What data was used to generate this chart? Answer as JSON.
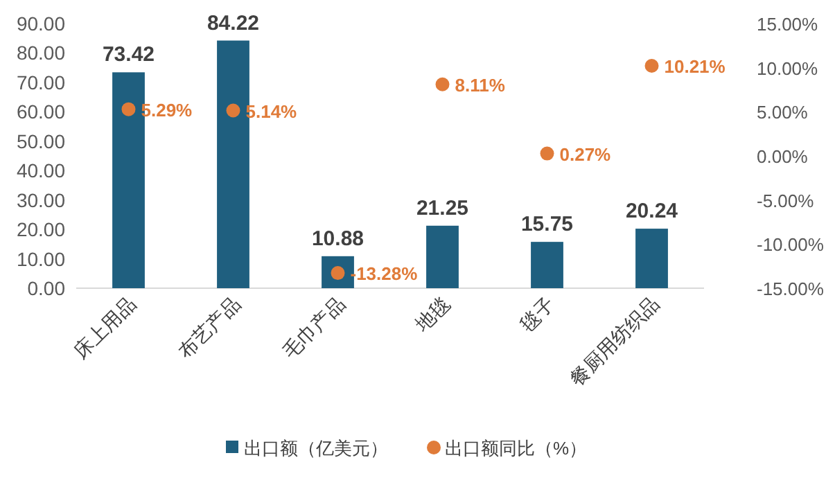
{
  "chart_data": {
    "type": "bar",
    "categories": [
      "床上用品",
      "布艺产品",
      "毛巾产品",
      "地毯",
      "毯子",
      "餐厨用纺织品"
    ],
    "series": [
      {
        "name": "出口额（亿美元）",
        "color": "#1f5f7f",
        "values": [
          73.42,
          84.22,
          10.88,
          21.25,
          15.75,
          20.24
        ],
        "data_labels": true
      },
      {
        "name": "出口额同比（%）",
        "type": "scatter",
        "axis": "y2",
        "color": "#e07b39",
        "values": [
          5.29,
          5.14,
          -13.28,
          8.11,
          0.27,
          10.21
        ],
        "value_labels": [
          "5.29%",
          "5.14%",
          "-13.28%",
          "8.11%",
          "0.27%",
          "10.21%"
        ]
      }
    ],
    "ylim": [
      0,
      90
    ],
    "yticks": [
      {
        "value": 0,
        "label": "0.00"
      },
      {
        "value": 10,
        "label": "10.00"
      },
      {
        "value": 20,
        "label": "20.00"
      },
      {
        "value": 30,
        "label": "30.00"
      },
      {
        "value": 40,
        "label": "40.00"
      },
      {
        "value": 50,
        "label": "50.00"
      },
      {
        "value": 60,
        "label": "60.00"
      },
      {
        "value": 70,
        "label": "70.00"
      },
      {
        "value": 80,
        "label": "80.00"
      },
      {
        "value": 90,
        "label": "90.00"
      }
    ],
    "y2lim": [
      -15,
      15
    ],
    "y2ticks": [
      {
        "value": -15,
        "label": "-15.00%"
      },
      {
        "value": -10,
        "label": "-10.00%"
      },
      {
        "value": -5,
        "label": "-5.00%"
      },
      {
        "value": 0,
        "label": "0.00%"
      },
      {
        "value": 5,
        "label": "5.00%"
      },
      {
        "value": 10,
        "label": "10.00%"
      },
      {
        "value": 15,
        "label": "15.00%"
      }
    ],
    "marker": "circle",
    "grid": false,
    "legend": "bottom"
  }
}
